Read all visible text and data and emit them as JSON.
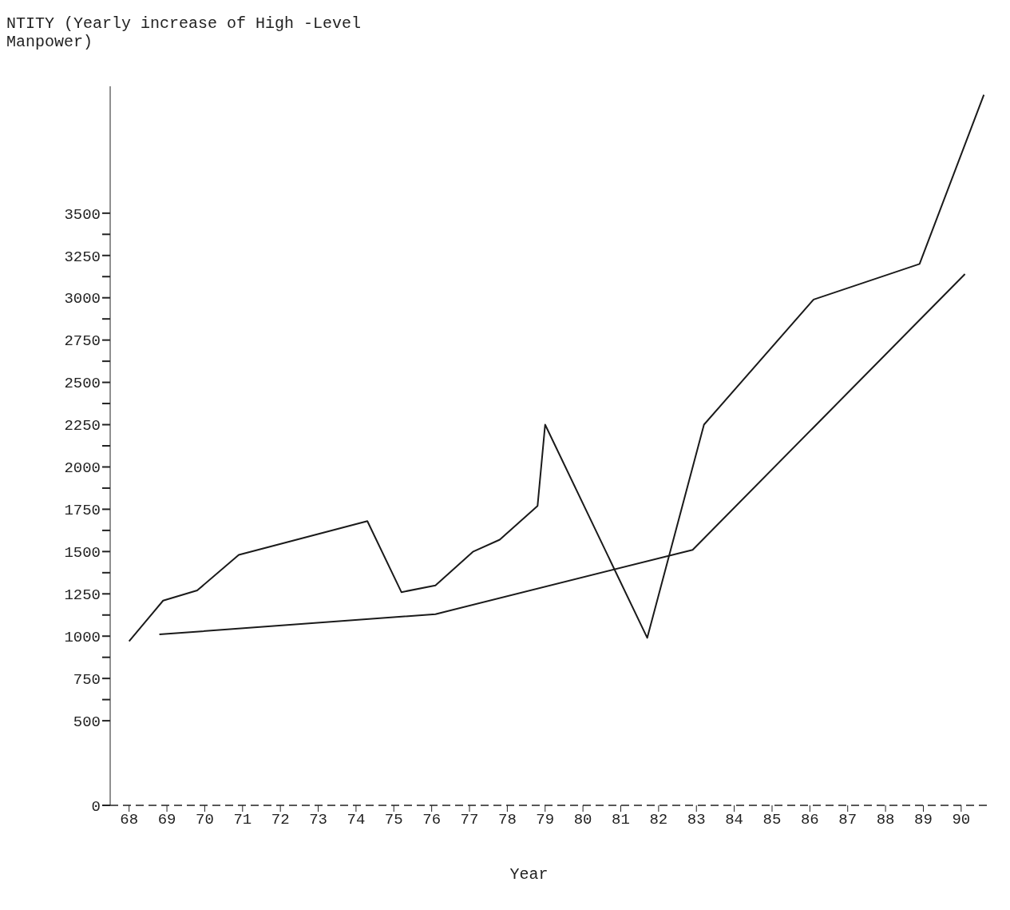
{
  "chart_data": {
    "type": "line",
    "ylabel": "NTITY (Yearly increase of High -Level Manpower)",
    "xlabel": "Year",
    "series": [
      {
        "color": "#1a1a1a",
        "x": [
          68.0,
          68.9,
          69.8,
          70.9,
          74.3,
          75.2,
          76.1,
          77.1,
          77.8,
          78.8,
          79.0,
          81.7,
          83.2,
          86.1,
          88.9,
          90.6
        ],
        "values": [
          970,
          1210,
          1270,
          1480,
          1680,
          1260,
          1300,
          1500,
          1570,
          1770,
          2250,
          990,
          2250,
          2990,
          3200,
          4200
        ]
      },
      {
        "color": "#1a1a1a",
        "x": [
          68.8,
          76.1,
          82.9,
          90.1
        ],
        "values": [
          1010,
          1130,
          1510,
          3140
        ]
      }
    ],
    "xlim": [
      67.5,
      90.7
    ],
    "xticks": [
      68,
      69,
      70,
      71,
      72,
      73,
      74,
      75,
      76,
      77,
      78,
      79,
      80,
      81,
      82,
      83,
      84,
      85,
      86,
      87,
      88,
      89,
      90
    ],
    "ylim": [
      0,
      4250
    ],
    "yticks": [
      0,
      500,
      {
        "value": 625,
        "label": null
      },
      750,
      {
        "value": 875,
        "label": null
      },
      1000,
      {
        "value": 1125,
        "label": null
      },
      1250,
      {
        "value": 1375,
        "label": null
      },
      1500,
      {
        "value": 1625,
        "label": null
      },
      1750,
      {
        "value": 1875,
        "label": null
      },
      2000,
      {
        "value": 2125,
        "label": null
      },
      2250,
      {
        "value": 2375,
        "label": null
      },
      2500,
      {
        "value": 2625,
        "label": null
      },
      2750,
      {
        "value": 2875,
        "label": null
      },
      3000,
      {
        "value": 3125,
        "label": null
      },
      3250,
      {
        "value": 3375,
        "label": null
      },
      3500
    ],
    "grid": false,
    "legend": false,
    "marker": "none",
    "line_style": "solid"
  }
}
